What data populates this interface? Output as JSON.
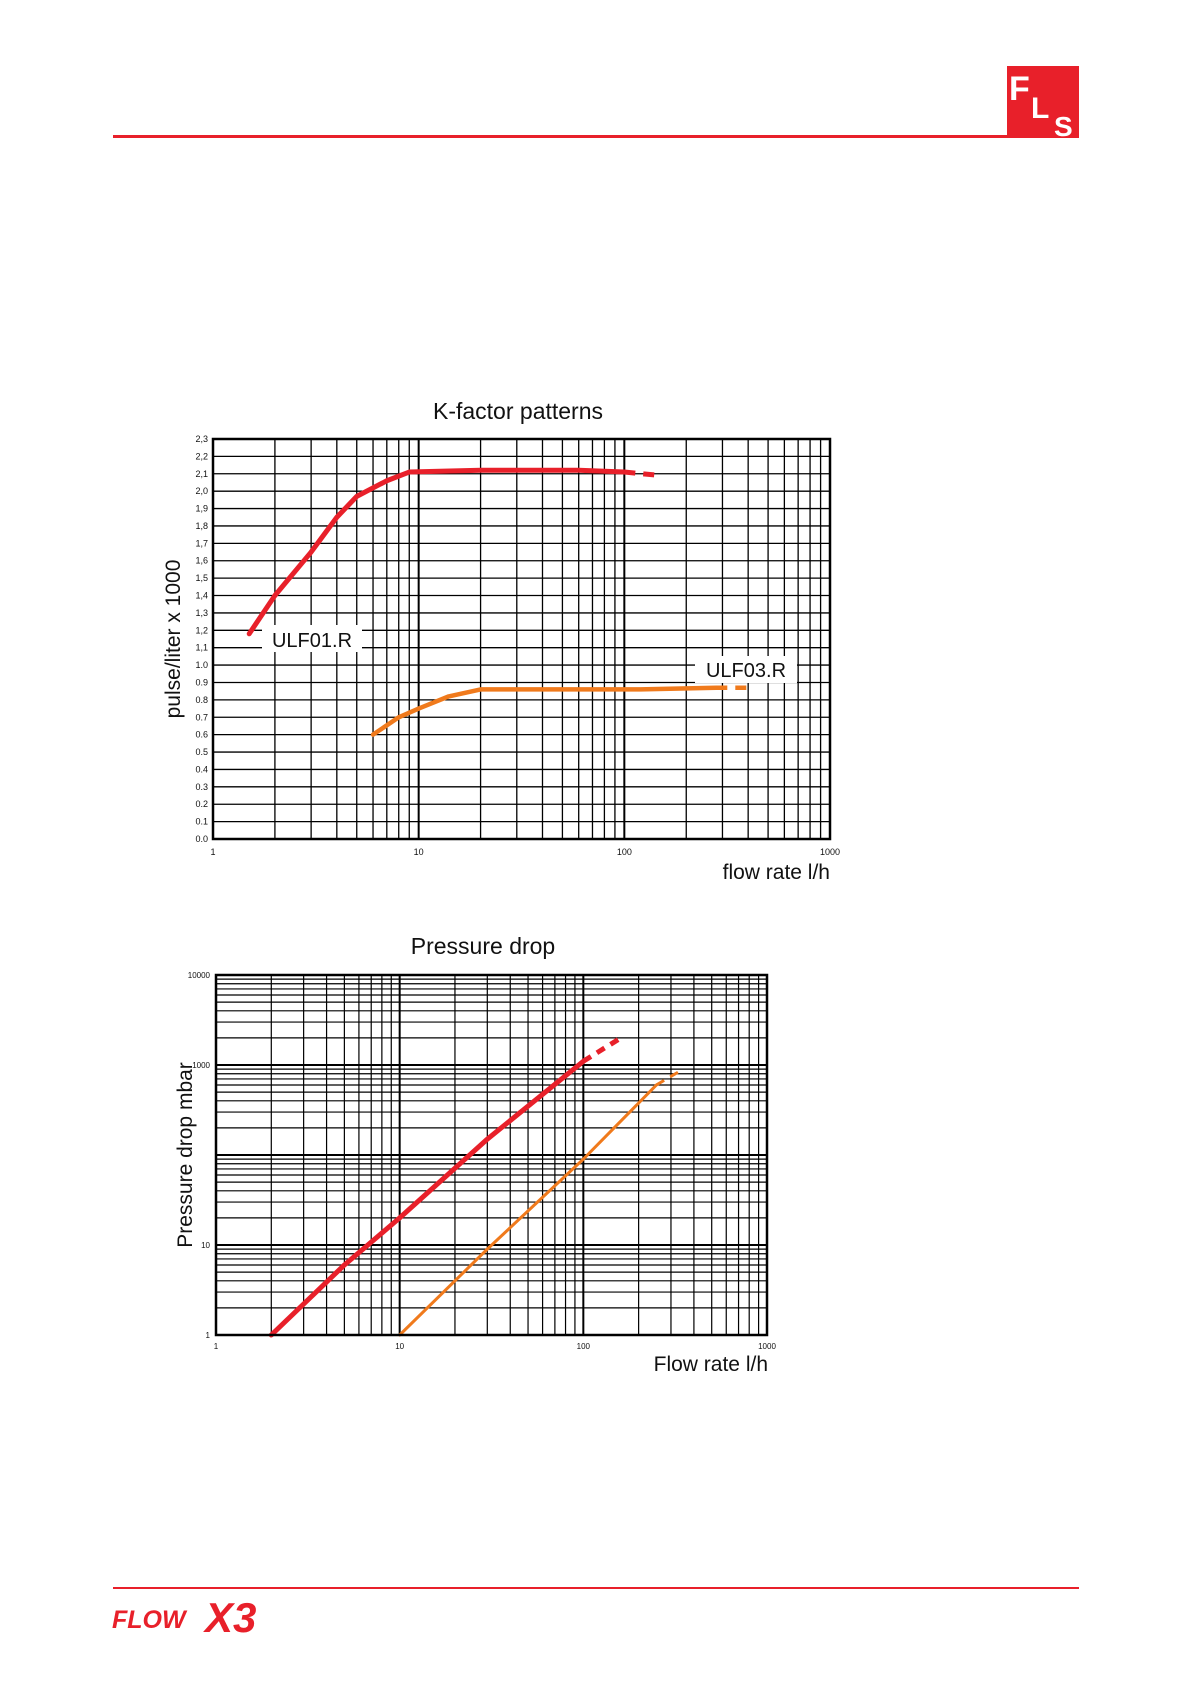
{
  "branding": {
    "top_logo_text": "FLS",
    "bottom_logo_text": "FLOWX3",
    "brand_color": "#e8202a"
  },
  "chart_data": [
    {
      "type": "line",
      "title": "K-factor patterns",
      "xlabel": "flow rate l/h",
      "ylabel": "pulse/liter x 1000",
      "x_scale": "log",
      "xlim": [
        1,
        1000
      ],
      "ylim": [
        0.0,
        2.3
      ],
      "x_ticks": [
        "1",
        "10",
        "100",
        "1000"
      ],
      "y_ticks": [
        "0.0",
        "0.1",
        "0.2",
        "0.3",
        "0.4",
        "0.5",
        "0.6",
        "0.7",
        "0.8",
        "0.9",
        "1.0",
        "1,1",
        "1,2",
        "1,3",
        "1,4",
        "1,5",
        "1,6",
        "1,7",
        "1,8",
        "1,9",
        "2,0",
        "2,1",
        "2,2",
        "2,3"
      ],
      "grid": true,
      "series": [
        {
          "name": "ULF01.R",
          "color": "#e8202a",
          "points": [
            [
              1.5,
              1.18
            ],
            [
              2,
              1.4
            ],
            [
              3,
              1.65
            ],
            [
              4,
              1.85
            ],
            [
              5,
              1.97
            ],
            [
              7,
              2.06
            ],
            [
              9,
              2.11
            ],
            [
              20,
              2.12
            ],
            [
              60,
              2.12
            ],
            [
              100,
              2.11
            ]
          ],
          "dashed_points": [
            [
              100,
              2.11
            ],
            [
              150,
              2.09
            ]
          ]
        },
        {
          "name": "ULF03.R",
          "color": "#f07a1c",
          "points": [
            [
              6,
              0.6
            ],
            [
              8,
              0.7
            ],
            [
              10,
              0.75
            ],
            [
              14,
              0.82
            ],
            [
              20,
              0.86
            ],
            [
              50,
              0.86
            ],
            [
              120,
              0.86
            ],
            [
              280,
              0.87
            ]
          ],
          "dashed_points": [
            [
              280,
              0.87
            ],
            [
              400,
              0.87
            ]
          ]
        }
      ]
    },
    {
      "type": "line",
      "title": "Pressure drop",
      "xlabel": "Flow rate l/h",
      "ylabel": "Pressure drop mbar",
      "x_scale": "log",
      "y_scale": "log",
      "xlim": [
        1,
        1000
      ],
      "ylim": [
        1,
        10000
      ],
      "x_ticks": [
        "1",
        "10",
        "100",
        "1000"
      ],
      "y_ticks": [
        "1",
        "10",
        "1000",
        "10000"
      ],
      "grid": true,
      "series": [
        {
          "color": "#e8202a",
          "points": [
            [
              2,
              1
            ],
            [
              5,
              6
            ],
            [
              10,
              20
            ],
            [
              30,
              150
            ],
            [
              100,
              1100
            ]
          ],
          "dashed_points": [
            [
              100,
              1100
            ],
            [
              160,
              2000
            ]
          ]
        },
        {
          "color": "#f07a1c",
          "points": [
            [
              10,
              1
            ],
            [
              30,
              9
            ],
            [
              100,
              90
            ],
            [
              250,
              600
            ]
          ],
          "dashed_points": [
            [
              250,
              600
            ],
            [
              350,
              900
            ]
          ]
        }
      ]
    }
  ]
}
